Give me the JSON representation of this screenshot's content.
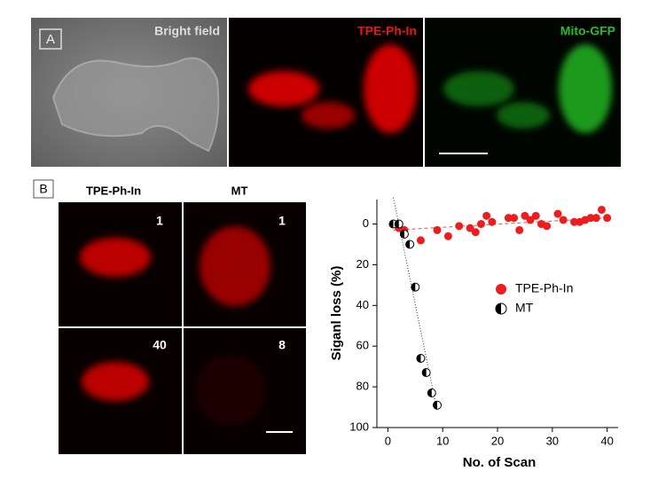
{
  "panel_a": {
    "label": "A",
    "images": [
      "Bright field",
      "TPE-Ph-In",
      "Mito-GFP"
    ]
  },
  "panel_b": {
    "label": "B",
    "columns": [
      "TPE-Ph-In",
      "MT"
    ],
    "frames": [
      "1",
      "1",
      "40",
      "8"
    ]
  },
  "chart_data": {
    "type": "scatter",
    "xlabel": "No. of Scan",
    "ylabel": "Siganl loss (%)",
    "xlim": [
      -2,
      42
    ],
    "ylim": [
      -12,
      100
    ],
    "y_reversed": true,
    "xticks": [
      0,
      10,
      20,
      30,
      40
    ],
    "yticks": [
      0,
      20,
      40,
      60,
      80,
      100
    ],
    "legend": "right",
    "series": [
      {
        "name": "TPE-Ph-In",
        "color": "#ee1c1c",
        "marker": "filled",
        "x": [
          2,
          3,
          6,
          9,
          11,
          13,
          15,
          16,
          17,
          18,
          19,
          22,
          23,
          24,
          25,
          26,
          27,
          28,
          29,
          31,
          32,
          34,
          35,
          36,
          37,
          38,
          39,
          40
        ],
        "values": [
          2,
          3,
          8,
          3,
          6,
          1,
          2,
          4,
          0,
          -4,
          -1,
          -3,
          -3,
          3,
          -4,
          -2,
          -4,
          0,
          1,
          -5,
          -2,
          -1,
          -1,
          -2,
          -3,
          -3,
          -7,
          -3
        ]
      },
      {
        "name": "MT",
        "color": "#000000",
        "marker": "half",
        "x": [
          1,
          2,
          3,
          4,
          5,
          6,
          7,
          8,
          9
        ],
        "values": [
          0,
          0,
          5,
          10,
          31,
          66,
          73,
          83,
          89
        ]
      }
    ],
    "trendlines": [
      {
        "x": [
          1,
          40
        ],
        "y": [
          3,
          -3
        ],
        "color": "#e05050",
        "dash": "4 3"
      },
      {
        "x": [
          1,
          9
        ],
        "y": [
          -13,
          92
        ],
        "color": "#333333",
        "dash": "1 2"
      }
    ]
  }
}
